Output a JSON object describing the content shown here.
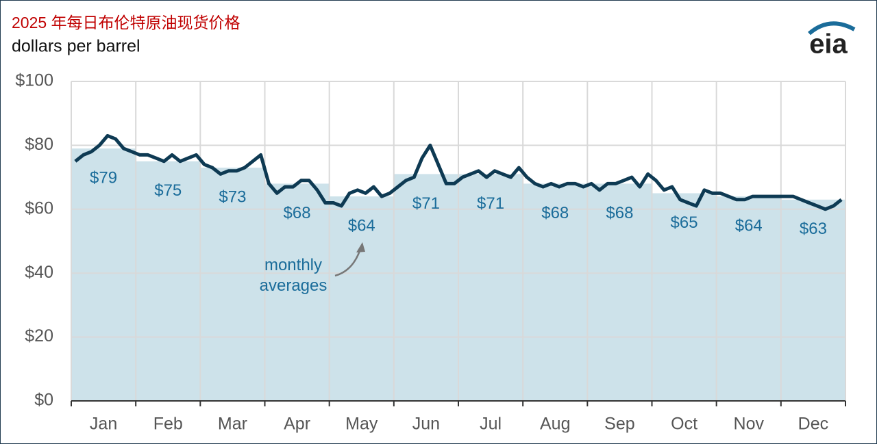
{
  "chart_data": {
    "type": "line",
    "title": "2025 年每日布伦特原油现货价格",
    "subtitle": "dollars per barrel",
    "logo": "eia",
    "annotation": "monthly averages",
    "categories": [
      "Jan",
      "Feb",
      "Mar",
      "Apr",
      "May",
      "Jun",
      "Jul",
      "Aug",
      "Sep",
      "Oct",
      "Nov",
      "Dec"
    ],
    "monthly_averages": {
      "color": "#cde2ea",
      "values": [
        79,
        75,
        73,
        68,
        64,
        71,
        71,
        68,
        68,
        65,
        64,
        63
      ],
      "value_labels": [
        "$79",
        "$75",
        "$73",
        "$68",
        "$64",
        "$71",
        "$71",
        "$68",
        "$68",
        "$65",
        "$64",
        "$63"
      ]
    },
    "daily": {
      "color": "#0e3a53",
      "values": [
        75,
        77,
        78,
        80,
        83,
        82,
        79,
        78,
        77,
        77,
        76,
        75,
        77,
        75,
        76,
        77,
        74,
        73,
        71,
        72,
        72,
        73,
        75,
        77,
        68,
        65,
        67,
        67,
        69,
        69,
        66,
        62,
        62,
        61,
        65,
        66,
        65,
        67,
        64,
        65,
        67,
        69,
        70,
        76,
        80,
        74,
        68,
        68,
        70,
        71,
        72,
        70,
        72,
        71,
        70,
        73,
        70,
        68,
        67,
        68,
        67,
        68,
        68,
        67,
        68,
        66,
        68,
        68,
        69,
        70,
        67,
        71,
        69,
        66,
        67,
        63,
        62,
        61,
        66,
        65,
        65,
        64,
        63,
        63,
        64,
        64,
        64,
        64,
        64,
        64,
        63,
        62,
        61,
        60,
        61,
        63
      ]
    },
    "ylim": [
      0,
      100
    ],
    "yticks": [
      {
        "value": 0,
        "label": "$0"
      },
      {
        "value": 20,
        "label": "$20"
      },
      {
        "value": 40,
        "label": "$40"
      },
      {
        "value": 60,
        "label": "$60"
      },
      {
        "value": 80,
        "label": "$80"
      },
      {
        "value": 100,
        "label": "$100"
      }
    ],
    "grid": true
  }
}
